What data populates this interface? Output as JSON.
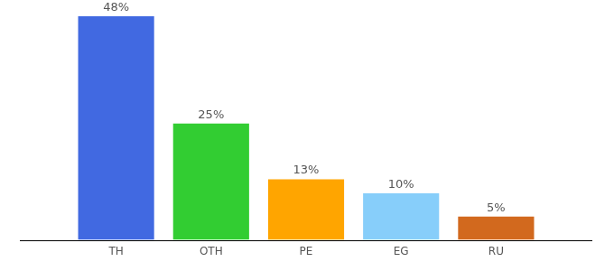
{
  "chart_data": {
    "type": "bar",
    "categories": [
      "TH",
      "OTH",
      "PE",
      "EG",
      "RU"
    ],
    "values": [
      48,
      25,
      13,
      10,
      5
    ],
    "value_labels": [
      "48%",
      "25%",
      "13%",
      "10%",
      "5%"
    ],
    "colors": [
      "#4169e1",
      "#32cd32",
      "#ffa500",
      "#87cefa",
      "#d2691e"
    ],
    "ylim": [
      0,
      48
    ],
    "grid": false,
    "data_labels": true,
    "tick_labels": "x"
  }
}
